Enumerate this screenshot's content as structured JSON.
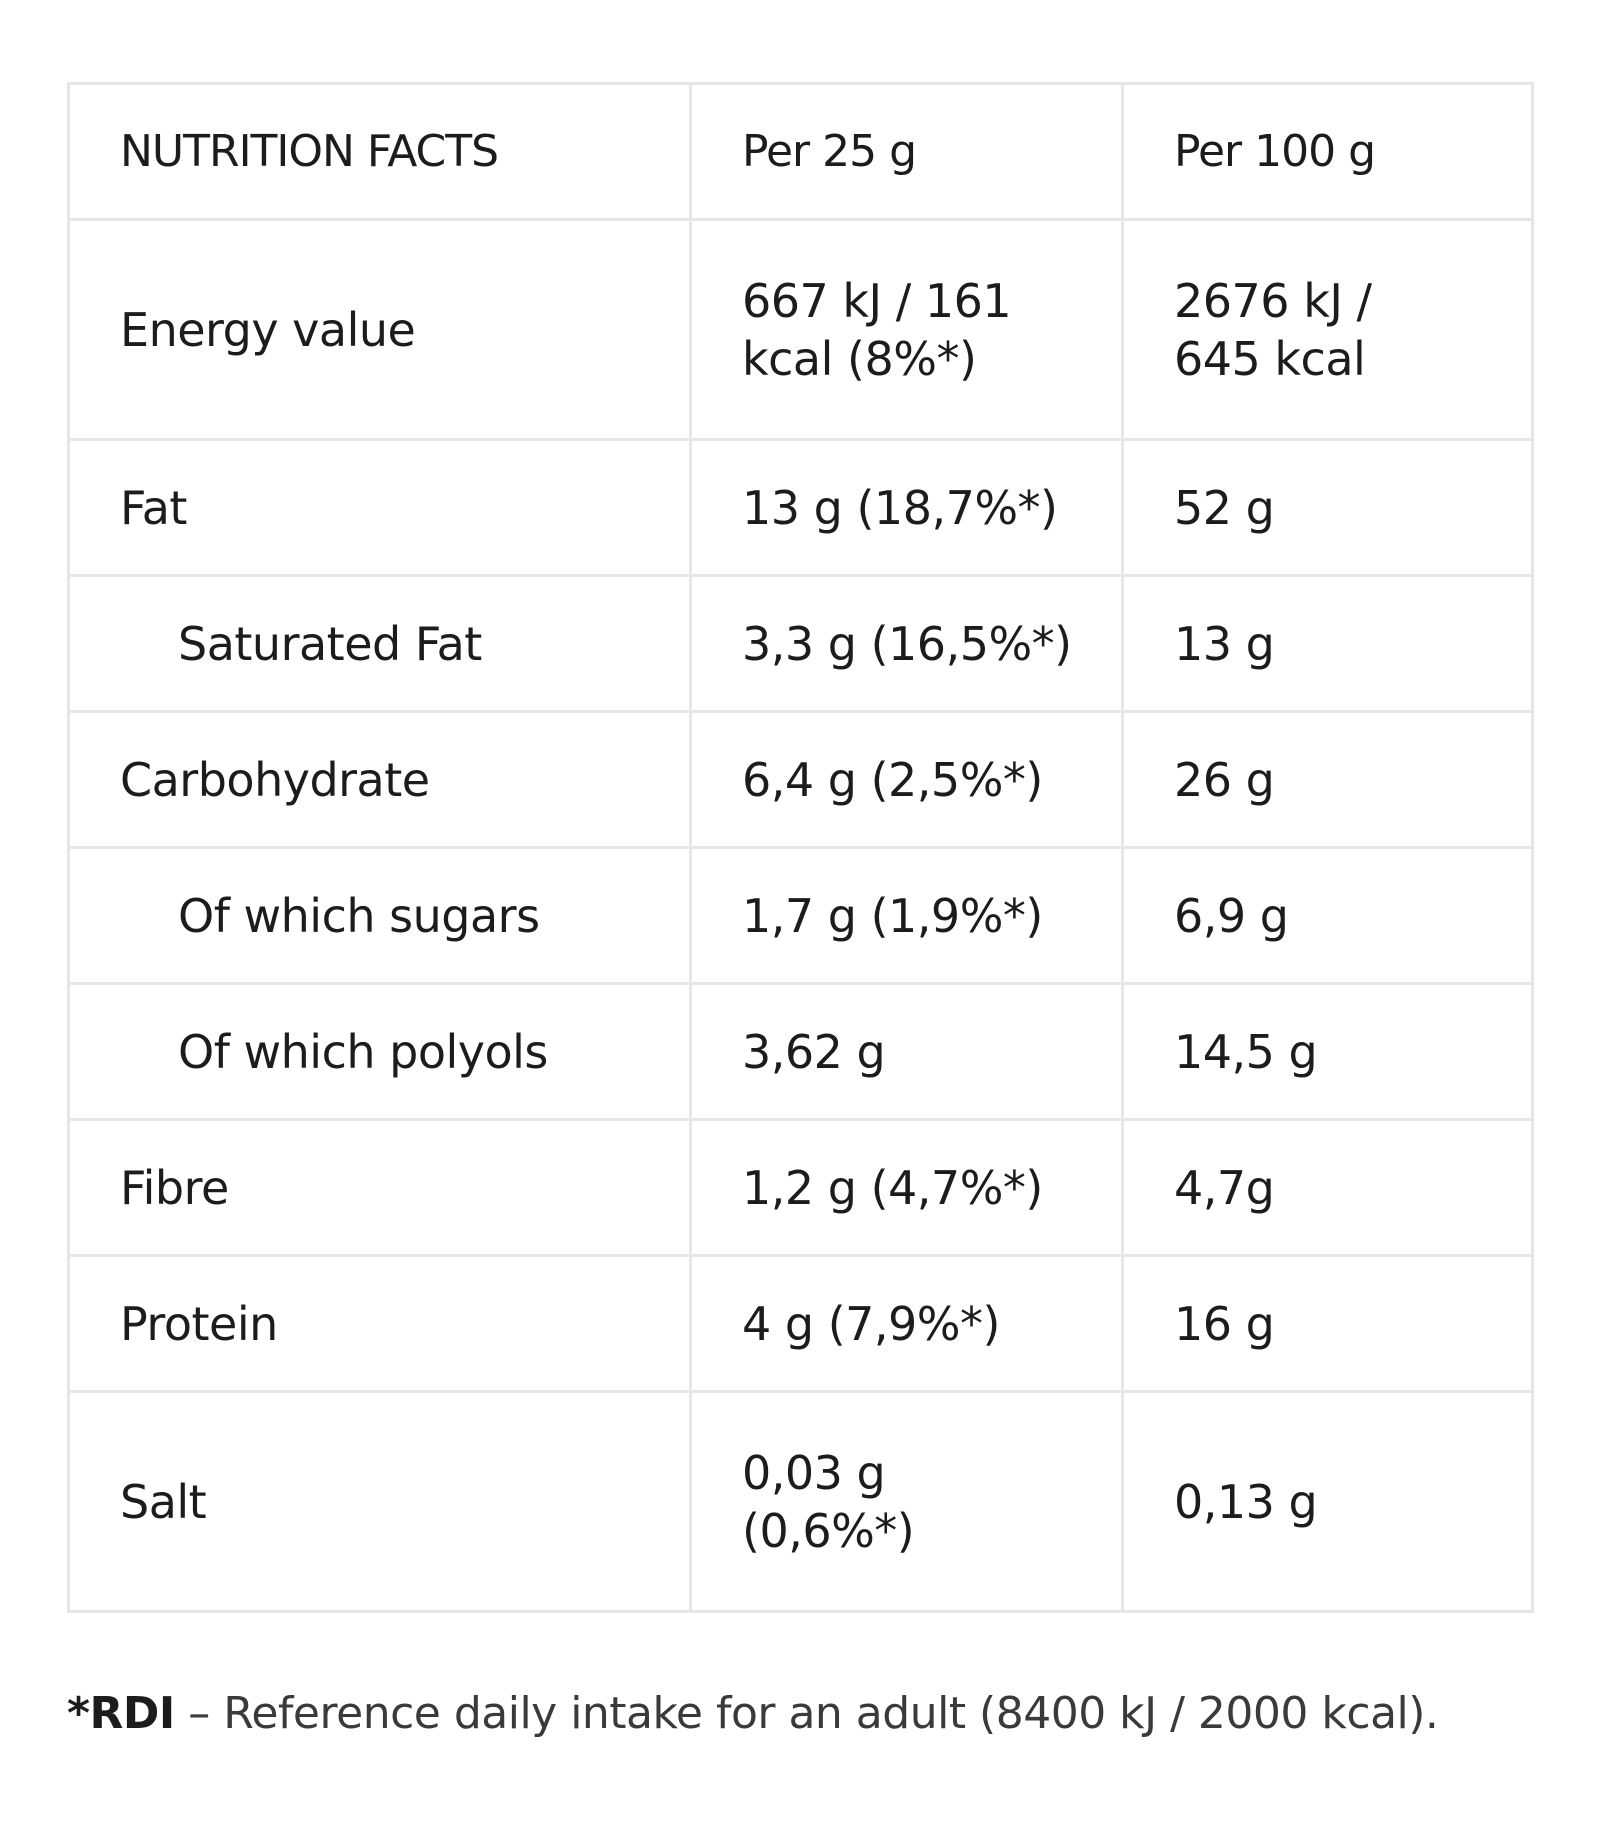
{
  "table": {
    "header": {
      "label": "NUTRITION FACTS",
      "per_25": "Per 25 g",
      "per_100": "Per 100 g"
    },
    "rows": [
      {
        "label": "Energy value",
        "per_25": "667 kJ / 161 kcal (8%*)",
        "per_100": "2676 kJ / 645 kcal"
      },
      {
        "label": "Fat",
        "per_25": "13 g (18,7%*)",
        "per_100": "52 g"
      },
      {
        "label": "Saturated Fat",
        "per_25": "3,3 g (16,5%*)",
        "per_100": "13 g"
      },
      {
        "label": "Carbohydrate",
        "per_25": "6,4 g (2,5%*)",
        "per_100": "26 g"
      },
      {
        "label": "Of which sugars",
        "per_25": "1,7 g (1,9%*)",
        "per_100": "6,9 g"
      },
      {
        "label": "Of which polyols",
        "per_25": "3,62 g",
        "per_100": "14,5 g"
      },
      {
        "label": "Fibre",
        "per_25": "1,2 g (4,7%*)",
        "per_100": "4,7g"
      },
      {
        "label": "Protein",
        "per_25": "4 g (7,9%*)",
        "per_100": "16 g"
      },
      {
        "label": "Salt",
        "per_25": "0,03 g (0,6%*)",
        "per_100": "0,13 g"
      }
    ]
  },
  "footnote": {
    "marker": "*RDI",
    "text": " – Reference daily intake for an adult (8400 kJ / 2000 kcal)."
  }
}
